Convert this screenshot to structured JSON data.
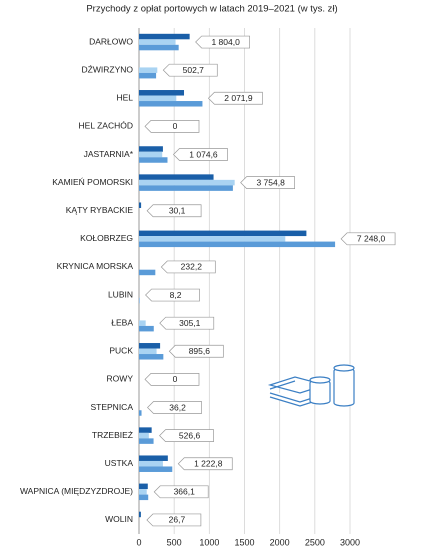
{
  "chart_data": {
    "type": "bar",
    "orientation": "horizontal",
    "title": "Przychody z opłat portowych w latach 2019–2021 (w tys. zł)",
    "categories": [
      "DARŁOWO",
      "DŹWIRZYNO",
      "HEL",
      "HEL ZACHÓD",
      "JASTARNIA*",
      "KAMIEŃ POMORSKI",
      "KĄTY RYBACKIE",
      "KOŁOBRZEG",
      "KRYNICA MORSKA",
      "LUBIN",
      "ŁEBA",
      "PUCK",
      "ROWY",
      "STEPNICA",
      "TRZEBIEŻ",
      "USTKA",
      "WAPNICA (MIĘDZYZDROJE)",
      "WOLIN"
    ],
    "series": [
      {
        "color": "#1a5fa8",
        "values": [
          720,
          0,
          640,
          0,
          340,
          1060,
          30,
          2380,
          0,
          0,
          0,
          300,
          0,
          0,
          180,
          410,
          125,
          27
        ]
      },
      {
        "color": "#a9d3f2",
        "values": [
          520,
          260,
          530,
          0,
          330,
          1360,
          0,
          2080,
          0,
          0,
          95,
          250,
          0,
          0,
          140,
          340,
          110,
          0
        ]
      },
      {
        "color": "#5a9bd8",
        "values": [
          564,
          243,
          902,
          0,
          405,
          1335,
          0,
          2788,
          232,
          8,
          210,
          346,
          0,
          36,
          207,
          473,
          131,
          0
        ]
      }
    ],
    "totals": [
      {
        "value": 1804.0,
        "label": "1 804,0"
      },
      {
        "value": 502.7,
        "label": "502,7"
      },
      {
        "value": 2071.9,
        "label": "2 071,9"
      },
      {
        "value": 0,
        "label": "0"
      },
      {
        "value": 1074.6,
        "label": "1 074,6"
      },
      {
        "value": 3754.8,
        "label": "3 754,8"
      },
      {
        "value": 30.1,
        "label": "30,1"
      },
      {
        "value": 7248.0,
        "label": "7 248,0"
      },
      {
        "value": 232.2,
        "label": "232,2"
      },
      {
        "value": 8.2,
        "label": "8,2"
      },
      {
        "value": 305.1,
        "label": "305,1"
      },
      {
        "value": 895.6,
        "label": "895,6"
      },
      {
        "value": 0,
        "label": "0"
      },
      {
        "value": 36.2,
        "label": "36,2"
      },
      {
        "value": 526.6,
        "label": "526,6"
      },
      {
        "value": 1222.8,
        "label": "1 222,8"
      },
      {
        "value": 366.1,
        "label": "366,1"
      },
      {
        "value": 26.7,
        "label": "26,7"
      }
    ],
    "xlim": [
      0,
      3000
    ],
    "xticks": [
      0,
      500,
      1000,
      1500,
      2000,
      2500,
      3000
    ],
    "grid": true
  }
}
